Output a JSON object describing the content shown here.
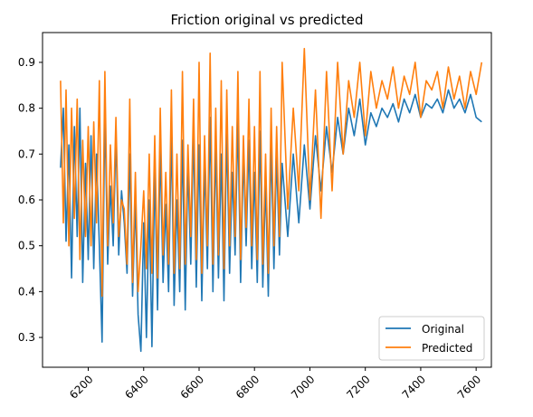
{
  "chart_data": {
    "type": "line",
    "title": "Friction original vs predicted",
    "xlabel": "",
    "ylabel": "",
    "xlim": [
      6035,
      7655
    ],
    "ylim": [
      0.235,
      0.965
    ],
    "x_ticks": [
      6200,
      6400,
      6600,
      6800,
      7000,
      7200,
      7400,
      7600
    ],
    "y_ticks": [
      0.3,
      0.4,
      0.5,
      0.6,
      0.7,
      0.8,
      0.9
    ],
    "x_tick_rotation": 45,
    "grid": false,
    "legend_position": "lower-right",
    "series": [
      {
        "name": "Original",
        "color": "#1f77b4",
        "x": [
          6100,
          6110,
          6120,
          6130,
          6140,
          6150,
          6160,
          6170,
          6180,
          6190,
          6200,
          6210,
          6220,
          6230,
          6240,
          6250,
          6260,
          6270,
          6280,
          6290,
          6300,
          6310,
          6320,
          6330,
          6340,
          6350,
          6360,
          6370,
          6380,
          6390,
          6400,
          6410,
          6420,
          6430,
          6440,
          6450,
          6460,
          6470,
          6480,
          6490,
          6500,
          6510,
          6520,
          6530,
          6540,
          6550,
          6560,
          6570,
          6580,
          6590,
          6600,
          6610,
          6620,
          6630,
          6640,
          6650,
          6660,
          6670,
          6680,
          6690,
          6700,
          6710,
          6720,
          6730,
          6740,
          6750,
          6760,
          6770,
          6780,
          6790,
          6800,
          6810,
          6820,
          6830,
          6840,
          6850,
          6860,
          6870,
          6880,
          6890,
          6900,
          6920,
          6940,
          6960,
          6980,
          7000,
          7020,
          7040,
          7060,
          7080,
          7100,
          7120,
          7140,
          7160,
          7180,
          7200,
          7220,
          7240,
          7260,
          7280,
          7300,
          7320,
          7340,
          7360,
          7380,
          7400,
          7420,
          7440,
          7460,
          7480,
          7500,
          7520,
          7540,
          7560,
          7580,
          7600,
          7620
        ],
        "values": [
          0.67,
          0.8,
          0.51,
          0.72,
          0.43,
          0.76,
          0.52,
          0.8,
          0.42,
          0.68,
          0.47,
          0.74,
          0.45,
          0.7,
          0.5,
          0.29,
          0.8,
          0.46,
          0.63,
          0.5,
          0.74,
          0.48,
          0.62,
          0.55,
          0.44,
          0.7,
          0.39,
          0.6,
          0.35,
          0.27,
          0.55,
          0.3,
          0.6,
          0.28,
          0.67,
          0.36,
          0.72,
          0.42,
          0.59,
          0.4,
          0.75,
          0.37,
          0.6,
          0.4,
          0.73,
          0.36,
          0.68,
          0.46,
          0.75,
          0.41,
          0.72,
          0.38,
          0.68,
          0.45,
          0.78,
          0.4,
          0.72,
          0.43,
          0.7,
          0.38,
          0.75,
          0.44,
          0.66,
          0.48,
          0.78,
          0.42,
          0.7,
          0.5,
          0.73,
          0.45,
          0.66,
          0.42,
          0.75,
          0.41,
          0.64,
          0.39,
          0.72,
          0.45,
          0.7,
          0.48,
          0.68,
          0.52,
          0.7,
          0.55,
          0.72,
          0.58,
          0.74,
          0.62,
          0.76,
          0.66,
          0.78,
          0.7,
          0.8,
          0.74,
          0.82,
          0.72,
          0.79,
          0.76,
          0.8,
          0.78,
          0.81,
          0.77,
          0.82,
          0.79,
          0.83,
          0.78,
          0.81,
          0.8,
          0.82,
          0.79,
          0.84,
          0.8,
          0.82,
          0.79,
          0.83,
          0.78,
          0.77
        ]
      },
      {
        "name": "Predicted",
        "color": "#ff7f0e",
        "x": [
          6100,
          6110,
          6120,
          6130,
          6140,
          6150,
          6160,
          6170,
          6180,
          6190,
          6200,
          6210,
          6220,
          6230,
          6240,
          6250,
          6260,
          6270,
          6280,
          6290,
          6300,
          6310,
          6320,
          6330,
          6340,
          6350,
          6360,
          6370,
          6380,
          6390,
          6400,
          6410,
          6420,
          6430,
          6440,
          6450,
          6460,
          6470,
          6480,
          6490,
          6500,
          6510,
          6520,
          6530,
          6540,
          6550,
          6560,
          6570,
          6580,
          6590,
          6600,
          6610,
          6620,
          6630,
          6640,
          6650,
          6660,
          6670,
          6680,
          6690,
          6700,
          6710,
          6720,
          6730,
          6740,
          6750,
          6760,
          6770,
          6780,
          6790,
          6800,
          6810,
          6820,
          6830,
          6840,
          6850,
          6860,
          6870,
          6880,
          6890,
          6900,
          6920,
          6940,
          6960,
          6980,
          7000,
          7020,
          7040,
          7060,
          7080,
          7100,
          7120,
          7140,
          7160,
          7180,
          7200,
          7220,
          7240,
          7260,
          7280,
          7300,
          7320,
          7340,
          7360,
          7380,
          7400,
          7420,
          7440,
          7460,
          7480,
          7500,
          7520,
          7540,
          7560,
          7580,
          7600,
          7620
        ],
        "values": [
          0.86,
          0.55,
          0.84,
          0.5,
          0.8,
          0.56,
          0.82,
          0.47,
          0.73,
          0.52,
          0.76,
          0.5,
          0.77,
          0.55,
          0.86,
          0.39,
          0.88,
          0.5,
          0.72,
          0.55,
          0.78,
          0.52,
          0.6,
          0.58,
          0.46,
          0.82,
          0.42,
          0.66,
          0.4,
          0.5,
          0.62,
          0.45,
          0.7,
          0.44,
          0.74,
          0.43,
          0.8,
          0.48,
          0.66,
          0.46,
          0.84,
          0.44,
          0.7,
          0.45,
          0.88,
          0.46,
          0.72,
          0.52,
          0.82,
          0.47,
          0.9,
          0.44,
          0.74,
          0.5,
          0.92,
          0.46,
          0.8,
          0.48,
          0.86,
          0.45,
          0.84,
          0.5,
          0.76,
          0.52,
          0.88,
          0.47,
          0.74,
          0.54,
          0.82,
          0.5,
          0.76,
          0.47,
          0.88,
          0.46,
          0.7,
          0.44,
          0.8,
          0.5,
          0.76,
          0.52,
          0.9,
          0.58,
          0.8,
          0.62,
          0.93,
          0.6,
          0.84,
          0.56,
          0.88,
          0.62,
          0.9,
          0.7,
          0.86,
          0.78,
          0.9,
          0.74,
          0.88,
          0.8,
          0.86,
          0.82,
          0.89,
          0.8,
          0.87,
          0.83,
          0.9,
          0.78,
          0.86,
          0.84,
          0.88,
          0.8,
          0.89,
          0.82,
          0.87,
          0.8,
          0.88,
          0.83,
          0.9
        ]
      }
    ]
  }
}
